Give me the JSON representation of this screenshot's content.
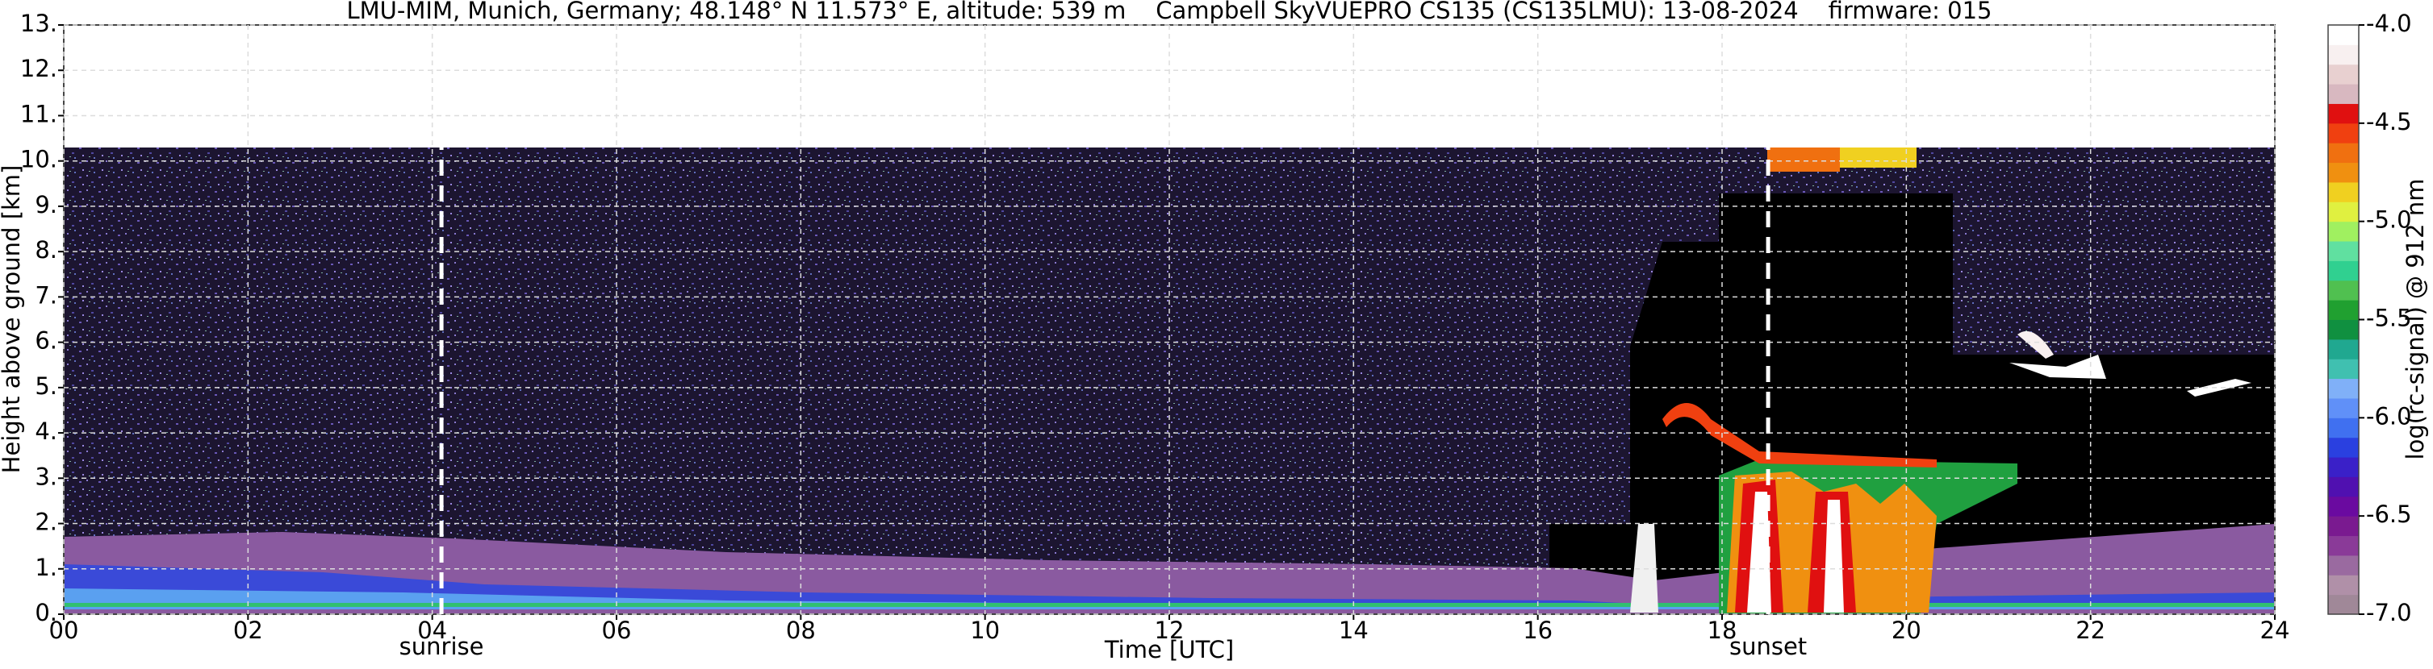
{
  "chart_data": {
    "type": "heatmap",
    "title": "LMU-MIM, Munich, Germany; 48.148° N 11.573° E, altitude: 539 m    Campbell SkyVUEPRO CS135 (CS135LMU): 13-08-2024    firmware: 015",
    "x_label": "Time [UTC]",
    "y_label": "Height above ground [km]",
    "xlim": [
      0,
      24
    ],
    "xticks": [
      {
        "value": 0,
        "label": "00"
      },
      {
        "value": 2,
        "label": "02"
      },
      {
        "value": 4,
        "label": "04"
      },
      {
        "value": 6,
        "label": "06"
      },
      {
        "value": 8,
        "label": "08"
      },
      10,
      12,
      14,
      16,
      18,
      20,
      22,
      24
    ],
    "ylim": [
      0,
      13
    ],
    "yticks": [
      {
        "value": 0,
        "label": "0."
      },
      {
        "value": 1,
        "label": "1."
      },
      {
        "value": 2,
        "label": "2."
      },
      {
        "value": 3,
        "label": "3."
      },
      {
        "value": 4,
        "label": "4."
      },
      {
        "value": 5,
        "label": "5."
      },
      {
        "value": 6,
        "label": "6."
      },
      {
        "value": 7,
        "label": "7."
      },
      {
        "value": 8,
        "label": "8."
      },
      {
        "value": 9,
        "label": "9."
      },
      {
        "value": 10,
        "label": "10."
      },
      {
        "value": 11,
        "label": "11."
      },
      {
        "value": 12,
        "label": "12."
      },
      {
        "value": 13,
        "label": "13."
      }
    ],
    "grid": true,
    "annotations": [
      {
        "x": 4.1,
        "label": "sunrise"
      },
      {
        "x": 18.5,
        "label": "sunset"
      }
    ],
    "colorbar": {
      "label": "log(rc-signal) @ 912 nm",
      "lim": [
        -7,
        -4
      ],
      "ticks": [
        {
          "value": -4,
          "label": "-4.0"
        },
        {
          "value": -4.5,
          "label": "-4.5"
        },
        {
          "value": -5,
          "label": "-5.0"
        },
        {
          "value": -5.5,
          "label": "-5.5"
        },
        {
          "value": -6,
          "label": "-6.0"
        },
        {
          "value": -6.5,
          "label": "-6.5"
        },
        {
          "value": -7,
          "label": "-7.0"
        }
      ],
      "colors": [
        "#a08898",
        "#b090a8",
        "#9a6aa0",
        "#8a3a98",
        "#7a1a90",
        "#6a0aa0",
        "#5010b0",
        "#3a20c8",
        "#2a40e0",
        "#4070f0",
        "#6090f8",
        "#80b0f8",
        "#40c0b0",
        "#20a890",
        "#109040",
        "#20a030",
        "#50c050",
        "#30d090",
        "#60e0a0",
        "#a0f060",
        "#e0f040",
        "#f0d020",
        "#f09010",
        "#f07010",
        "#f04010",
        "#e01010",
        "#d8b8c0",
        "#e8d0d0",
        "#f8f0f0",
        "#ffffff"
      ]
    }
  }
}
